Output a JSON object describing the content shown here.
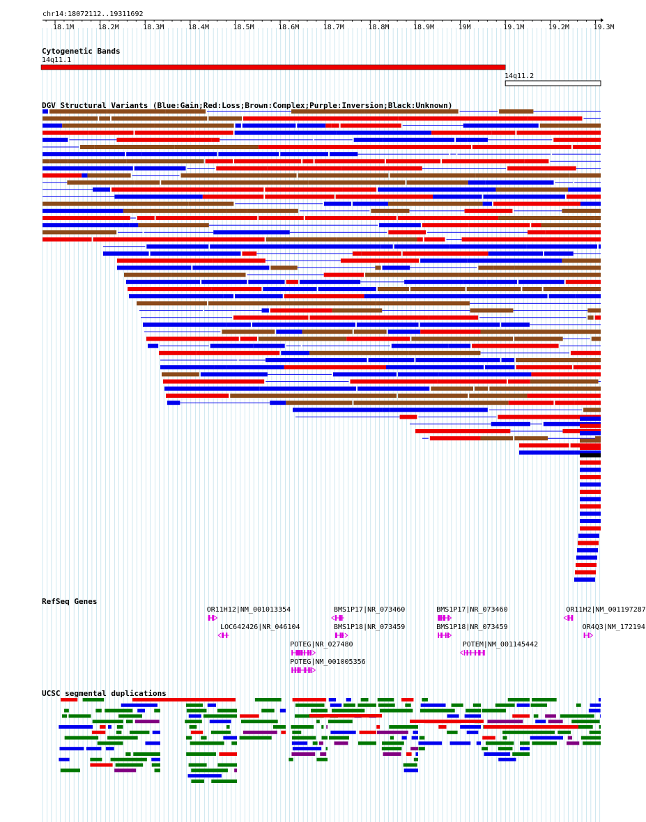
{
  "ruler": {
    "region": "chr14:18072112..19311692",
    "ticks": [
      "18.1M",
      "18.2M",
      "18.3M",
      "18.4M",
      "18.5M",
      "18.6M",
      "18.7M",
      "18.8M",
      "18.9M",
      "19M",
      "19.1M",
      "19.2M",
      "19.3M"
    ]
  },
  "colors": {
    "gain": "#0000ee",
    "loss": "#ee0000",
    "complex": "#8b4a1a",
    "inversion": "#800080",
    "unknown": "#000000",
    "gene": "#dd00dd",
    "segdup_green": "#007700",
    "segdup_red": "#ee0000",
    "segdup_blue": "#0000ee",
    "segdup_purple": "#800080",
    "grid": "#9fd0e0"
  },
  "tracks": {
    "cytoband": {
      "title": "Cytogenetic Bands",
      "bands": [
        {
          "name": "14q11.1",
          "start": 18072112,
          "end": 19100000,
          "stain": "acen"
        },
        {
          "name": "14q11.2",
          "start": 19100000,
          "end": 19311692,
          "stain": "gneg"
        }
      ]
    },
    "dgv": {
      "title": "DGV Structural Variants (Blue:Gain;Red:Loss;Brown:Complex;Purple:Inversion;Black:Unknown)"
    },
    "refseq": {
      "title": "RefSeq Genes",
      "genes": [
        {
          "label": "OR11H12|NM_001013354",
          "start": 18440000,
          "end": 18452000,
          "strand": "+",
          "row": 0
        },
        {
          "label": "BMS1P17|NR_073460",
          "start": 18722000,
          "end": 18742000,
          "strand": "-",
          "row": 0
        },
        {
          "label": "BMS1P17|NR_073460",
          "start": 18950000,
          "end": 18972000,
          "strand": "+",
          "row": 0
        },
        {
          "label": "OR11H2|NM_001197287",
          "start": 19238000,
          "end": 19250000,
          "strand": "-",
          "row": 0
        },
        {
          "label": "LOC642426|NR_046104",
          "start": 18470000,
          "end": 18486000,
          "strand": "-",
          "row": 1
        },
        {
          "label": "BMS1P18|NR_073459",
          "start": 18722000,
          "end": 18742000,
          "strand": "+",
          "row": 1
        },
        {
          "label": "BMS1P18|NR_073459",
          "start": 18950000,
          "end": 18972000,
          "strand": "+",
          "row": 1
        },
        {
          "label": "OR4Q3|NM_172194",
          "start": 19274000,
          "end": 19286000,
          "strand": "+",
          "row": 1
        },
        {
          "label": "POTEG|NR_027480",
          "start": 18625000,
          "end": 18670000,
          "strand": "+",
          "row": 2
        },
        {
          "label": "POTEM|NM_001145442",
          "start": 19008000,
          "end": 19053000,
          "strand": "-",
          "row": 2
        },
        {
          "label": "POTEG|NM_001005356",
          "start": 18625000,
          "end": 18670000,
          "strand": "+",
          "row": 3
        }
      ]
    },
    "segdup": {
      "title": "UCSC segmental duplications"
    }
  }
}
